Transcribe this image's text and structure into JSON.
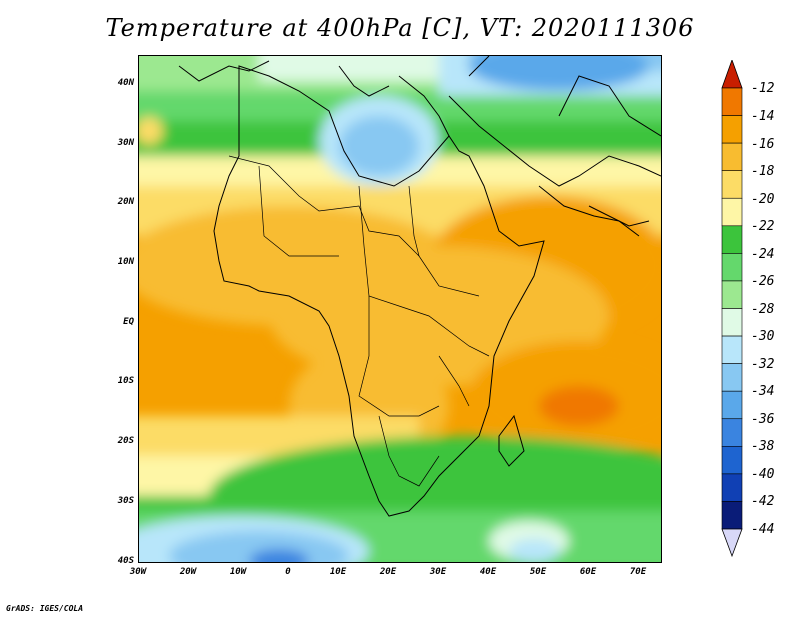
{
  "title": "Temperature at 400hPa [C], VT: 2020111306",
  "credit": "GrADS: IGES/COLA",
  "map": {
    "lat_labels": [
      "40N",
      "30N",
      "20N",
      "10N",
      "EQ",
      "10S",
      "20S",
      "30S",
      "40S"
    ],
    "lon_labels": [
      "30W",
      "20W",
      "10W",
      "0",
      "10E",
      "20E",
      "30E",
      "40E",
      "50E",
      "60E",
      "70E"
    ],
    "lat_range": [
      -40,
      45
    ],
    "lon_range": [
      -30,
      75
    ],
    "variable": "Temperature",
    "level": "400hPa",
    "units": "C",
    "valid_time": "2020111306"
  },
  "colorbar": {
    "labels": [
      "-12",
      "-14",
      "-16",
      "-18",
      "-20",
      "-22",
      "-24",
      "-26",
      "-28",
      "-30",
      "-32",
      "-34",
      "-36",
      "-38",
      "-40",
      "-42",
      "-44"
    ],
    "colors": [
      "#e13e00",
      "#f07800",
      "#f5a000",
      "#f8bc30",
      "#fcdc66",
      "#fef6a6",
      "#3cc43c",
      "#64d86c",
      "#9ce890",
      "#e0fae6",
      "#b8e6fa",
      "#88c8f2",
      "#5aa8ea",
      "#3a84e0",
      "#1e64d0",
      "#1040b4",
      "#0a1c78"
    ],
    "top_arrow_color": "#c81e00",
    "bottom_arrow_color": "#d8d8f8"
  }
}
